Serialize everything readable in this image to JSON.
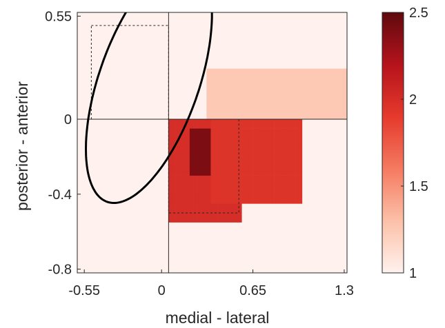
{
  "chart_data": {
    "type": "heatmap",
    "title": "",
    "xlabel": "medial - lateral",
    "ylabel": "posterior - anterior",
    "xlim": [
      -0.6,
      1.32
    ],
    "ylim": [
      -0.82,
      0.57
    ],
    "x_ticks": [
      {
        "value": -0.55,
        "label": "-0.55"
      },
      {
        "value": 0,
        "label": "0"
      },
      {
        "value": 0.65,
        "label": "0.65"
      },
      {
        "value": 1.3,
        "label": "1.3"
      }
    ],
    "y_ticks": [
      {
        "value": 0.55,
        "label": "0.55"
      },
      {
        "value": 0,
        "label": "0"
      },
      {
        "value": -0.4,
        "label": "-0.4"
      },
      {
        "value": -0.8,
        "label": "-0.8"
      }
    ],
    "colorbar": {
      "min": 1,
      "max": 2.5,
      "ticks": [
        {
          "value": 2.5,
          "label": "2.5"
        },
        {
          "value": 2,
          "label": "2"
        },
        {
          "value": 1.5,
          "label": "1.5"
        },
        {
          "value": 1,
          "label": "1"
        }
      ],
      "colors": [
        "#fff2ee",
        "#fcc0a8",
        "#f47a60",
        "#e53a2c",
        "#b5131c",
        "#5e0a0e"
      ]
    },
    "background_value": 1,
    "heatmap_grid": {
      "cell_size": 0.05
    },
    "heatmap_regions": [
      {
        "x_range": [
          0.32,
          1.32
        ],
        "y_range": [
          0.27,
          0.0
        ],
        "value": 1.25
      },
      {
        "x_range": [
          0.05,
          0.57
        ],
        "y_range": [
          0.0,
          -0.55
        ],
        "value": 2.0
      },
      {
        "x_range": [
          0.2,
          0.37
        ],
        "y_range": [
          -0.05,
          -0.3
        ],
        "value": 2.4
      },
      {
        "x_range": [
          0.35,
          1.0
        ],
        "y_range": [
          0.0,
          -0.45
        ],
        "value": 1.95
      }
    ],
    "reference_lines": [
      {
        "axis": "x",
        "value": 0.05
      },
      {
        "axis": "y",
        "value": 0
      }
    ],
    "ellipse": {
      "center": [
        -0.09,
        0.2
      ],
      "semi_axes": [
        0.34,
        0.71
      ],
      "rotation_deg": -28
    },
    "dashed_boxes": [
      {
        "x": [
          -0.5,
          0.05
        ],
        "y": [
          0.0,
          0.5
        ]
      },
      {
        "x": [
          0.05,
          0.55
        ],
        "y": [
          -0.5,
          0.0
        ]
      }
    ]
  }
}
